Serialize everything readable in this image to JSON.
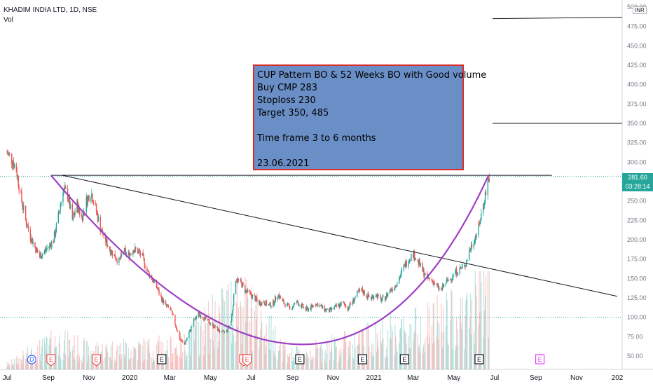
{
  "header": {
    "title": "KHADIM INDIA LTD, 1D, NSE",
    "vol_label": "Vol"
  },
  "price_axis": {
    "ticks": [
      "500.00",
      "475.00",
      "450.00",
      "425.00",
      "400.00",
      "375.00",
      "350.00",
      "325.00",
      "300.00",
      "275.00",
      "250.00",
      "225.00",
      "200.00",
      "175.00",
      "150.00",
      "125.00",
      "100.00",
      "75.00",
      "50.00"
    ],
    "currency": "INR",
    "last_price": "281.60",
    "countdown": "03:28:14",
    "last_price_color": "#26a69a"
  },
  "time_axis": {
    "labels": [
      "Jul",
      "Sep",
      "Nov",
      "2020",
      "Mar",
      "May",
      "Jul",
      "Sep",
      "Nov",
      "2021",
      "Mar",
      "May",
      "Jul",
      "Sep",
      "Nov",
      "202"
    ]
  },
  "event_markers": [
    "D",
    "E",
    "E",
    "E",
    "E",
    "E",
    "E",
    "E",
    "E",
    "E",
    "E"
  ],
  "annotation": {
    "lines": [
      "CUP Pattern BO & 52 Weeks BO with Good volume",
      "Buy CMP 283",
      "Stoploss 230",
      "Target 350, 485",
      "",
      "Time frame 3 to 6 months",
      "",
      "23.06.2021"
    ],
    "background": "#6a8fc7",
    "border": "#d92c2c"
  },
  "colors": {
    "up": "#26a69a",
    "down": "#ef5350",
    "cup": "#9c3fc4",
    "trendline": "#131722"
  },
  "chart_data": {
    "type": "candlestick",
    "symbol": "KHADIM INDIA LTD",
    "interval": "1D",
    "exchange": "NSE",
    "ylim": [
      40,
      510
    ],
    "close_path": [
      {
        "t": "2019-07-01",
        "c": 312
      },
      {
        "t": "2019-07-08",
        "c": 305
      },
      {
        "t": "2019-07-15",
        "c": 290
      },
      {
        "t": "2019-07-22",
        "c": 255
      },
      {
        "t": "2019-07-29",
        "c": 225
      },
      {
        "t": "2019-08-05",
        "c": 205
      },
      {
        "t": "2019-08-12",
        "c": 190
      },
      {
        "t": "2019-08-19",
        "c": 178
      },
      {
        "t": "2019-08-26",
        "c": 185
      },
      {
        "t": "2019-09-02",
        "c": 192
      },
      {
        "t": "2019-09-09",
        "c": 200
      },
      {
        "t": "2019-09-16",
        "c": 230
      },
      {
        "t": "2019-09-23",
        "c": 265
      },
      {
        "t": "2019-09-30",
        "c": 258
      },
      {
        "t": "2019-10-07",
        "c": 225
      },
      {
        "t": "2019-10-14",
        "c": 245
      },
      {
        "t": "2019-10-21",
        "c": 228
      },
      {
        "t": "2019-10-28",
        "c": 250
      },
      {
        "t": "2019-11-04",
        "c": 262
      },
      {
        "t": "2019-11-11",
        "c": 240
      },
      {
        "t": "2019-11-18",
        "c": 215
      },
      {
        "t": "2019-11-25",
        "c": 200
      },
      {
        "t": "2019-12-02",
        "c": 188
      },
      {
        "t": "2019-12-09",
        "c": 180
      },
      {
        "t": "2019-12-16",
        "c": 172
      },
      {
        "t": "2019-12-23",
        "c": 185
      },
      {
        "t": "2019-12-30",
        "c": 180
      },
      {
        "t": "2020-01-06",
        "c": 188
      },
      {
        "t": "2020-01-13",
        "c": 185
      },
      {
        "t": "2020-01-20",
        "c": 178
      },
      {
        "t": "2020-01-27",
        "c": 160
      },
      {
        "t": "2020-02-03",
        "c": 150
      },
      {
        "t": "2020-02-10",
        "c": 140
      },
      {
        "t": "2020-02-17",
        "c": 125
      },
      {
        "t": "2020-02-24",
        "c": 115
      },
      {
        "t": "2020-03-02",
        "c": 110
      },
      {
        "t": "2020-03-09",
        "c": 92
      },
      {
        "t": "2020-03-16",
        "c": 72
      },
      {
        "t": "2020-03-23",
        "c": 65
      },
      {
        "t": "2020-03-30",
        "c": 80
      },
      {
        "t": "2020-04-06",
        "c": 95
      },
      {
        "t": "2020-04-13",
        "c": 105
      },
      {
        "t": "2020-04-20",
        "c": 100
      },
      {
        "t": "2020-04-27",
        "c": 95
      },
      {
        "t": "2020-05-04",
        "c": 90
      },
      {
        "t": "2020-05-11",
        "c": 85
      },
      {
        "t": "2020-05-18",
        "c": 80
      },
      {
        "t": "2020-05-25",
        "c": 82
      },
      {
        "t": "2020-06-01",
        "c": 95
      },
      {
        "t": "2020-06-08",
        "c": 150
      },
      {
        "t": "2020-06-15",
        "c": 145
      },
      {
        "t": "2020-06-22",
        "c": 135
      },
      {
        "t": "2020-06-29",
        "c": 130
      },
      {
        "t": "2020-07-06",
        "c": 125
      },
      {
        "t": "2020-07-13",
        "c": 118
      },
      {
        "t": "2020-07-20",
        "c": 120
      },
      {
        "t": "2020-07-27",
        "c": 115
      },
      {
        "t": "2020-08-03",
        "c": 118
      },
      {
        "t": "2020-08-10",
        "c": 130
      },
      {
        "t": "2020-08-17",
        "c": 120
      },
      {
        "t": "2020-08-24",
        "c": 115
      },
      {
        "t": "2020-08-31",
        "c": 112
      },
      {
        "t": "2020-09-07",
        "c": 120
      },
      {
        "t": "2020-09-14",
        "c": 115
      },
      {
        "t": "2020-09-21",
        "c": 110
      },
      {
        "t": "2020-09-28",
        "c": 112
      },
      {
        "t": "2020-10-05",
        "c": 118
      },
      {
        "t": "2020-10-12",
        "c": 115
      },
      {
        "t": "2020-10-19",
        "c": 110
      },
      {
        "t": "2020-10-26",
        "c": 108
      },
      {
        "t": "2020-11-02",
        "c": 112
      },
      {
        "t": "2020-11-09",
        "c": 115
      },
      {
        "t": "2020-11-16",
        "c": 118
      },
      {
        "t": "2020-11-23",
        "c": 112
      },
      {
        "t": "2020-11-30",
        "c": 120
      },
      {
        "t": "2020-12-07",
        "c": 130
      },
      {
        "t": "2020-12-14",
        "c": 135
      },
      {
        "t": "2020-12-21",
        "c": 128
      },
      {
        "t": "2020-12-28",
        "c": 125
      },
      {
        "t": "2021-01-04",
        "c": 130
      },
      {
        "t": "2021-01-11",
        "c": 122
      },
      {
        "t": "2021-01-18",
        "c": 125
      },
      {
        "t": "2021-01-25",
        "c": 135
      },
      {
        "t": "2021-02-01",
        "c": 140
      },
      {
        "t": "2021-02-08",
        "c": 150
      },
      {
        "t": "2021-02-15",
        "c": 165
      },
      {
        "t": "2021-02-22",
        "c": 175
      },
      {
        "t": "2021-03-01",
        "c": 182
      },
      {
        "t": "2021-03-08",
        "c": 172
      },
      {
        "t": "2021-03-15",
        "c": 160
      },
      {
        "t": "2021-03-22",
        "c": 150
      },
      {
        "t": "2021-03-29",
        "c": 148
      },
      {
        "t": "2021-04-05",
        "c": 140
      },
      {
        "t": "2021-04-12",
        "c": 135
      },
      {
        "t": "2021-04-19",
        "c": 145
      },
      {
        "t": "2021-04-26",
        "c": 150
      },
      {
        "t": "2021-05-03",
        "c": 158
      },
      {
        "t": "2021-05-10",
        "c": 162
      },
      {
        "t": "2021-05-17",
        "c": 165
      },
      {
        "t": "2021-05-24",
        "c": 185
      },
      {
        "t": "2021-05-31",
        "c": 200
      },
      {
        "t": "2021-06-07",
        "c": 215
      },
      {
        "t": "2021-06-14",
        "c": 245
      },
      {
        "t": "2021-06-21",
        "c": 275
      },
      {
        "t": "2021-06-23",
        "c": 281.6
      }
    ],
    "volume_path": [
      {
        "t": "2019-07-01",
        "v": 0.05
      },
      {
        "t": "2019-09-15",
        "v": 0.3
      },
      {
        "t": "2019-11-01",
        "v": 0.2
      },
      {
        "t": "2020-03-20",
        "v": 0.25
      },
      {
        "t": "2020-06-10",
        "v": 0.75
      },
      {
        "t": "2020-09-01",
        "v": 0.15
      },
      {
        "t": "2020-12-10",
        "v": 0.3
      },
      {
        "t": "2021-03-01",
        "v": 0.45
      },
      {
        "t": "2021-05-25",
        "v": 0.6
      },
      {
        "t": "2021-06-15",
        "v": 1.0
      },
      {
        "t": "2021-06-23",
        "v": 0.9
      }
    ],
    "drawings": {
      "resistance_line": 283,
      "target_lines": [
        350,
        485
      ],
      "trendline": {
        "from": {
          "t": "2019-09-22",
          "p": 283
        },
        "to": {
          "t": "2022-01-01",
          "p": 127
        }
      },
      "cup_arc": {
        "from": {
          "t": "2019-09-05",
          "p": 283
        },
        "bottom": {
          "t": "2020-09-15",
          "p": 65
        },
        "to": {
          "t": "2021-06-22",
          "p": 283
        }
      }
    }
  }
}
